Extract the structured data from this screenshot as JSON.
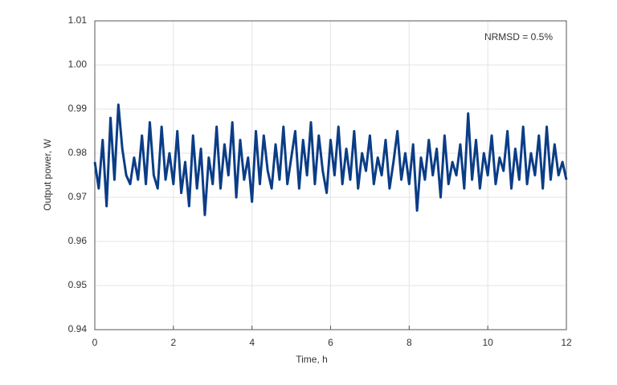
{
  "chart_data": {
    "type": "line",
    "annotation": "NRMSD = 0.5%",
    "xlabel": "Time, h",
    "ylabel": "Output power, W",
    "x": [
      0,
      0.1,
      0.2,
      0.3,
      0.4,
      0.5,
      0.6,
      0.7,
      0.8,
      0.9,
      1,
      1.1,
      1.2,
      1.3,
      1.4,
      1.5,
      1.6,
      1.7,
      1.8,
      1.9,
      2,
      2.1,
      2.2,
      2.3,
      2.4,
      2.5,
      2.6,
      2.7,
      2.8,
      2.9,
      3,
      3.1,
      3.2,
      3.3,
      3.4,
      3.5,
      3.6,
      3.7,
      3.8,
      3.9,
      4,
      4.1,
      4.2,
      4.3,
      4.4,
      4.5,
      4.6,
      4.7,
      4.8,
      4.9,
      5,
      5.1,
      5.2,
      5.3,
      5.4,
      5.5,
      5.6,
      5.7,
      5.8,
      5.9,
      6,
      6.1,
      6.2,
      6.3,
      6.4,
      6.5,
      6.6,
      6.7,
      6.8,
      6.9,
      7,
      7.1,
      7.2,
      7.3,
      7.4,
      7.5,
      7.6,
      7.7,
      7.8,
      7.9,
      8,
      8.1,
      8.2,
      8.3,
      8.4,
      8.5,
      8.6,
      8.7,
      8.8,
      8.9,
      9,
      9.1,
      9.2,
      9.3,
      9.4,
      9.5,
      9.6,
      9.7,
      9.8,
      9.9,
      10,
      10.1,
      10.2,
      10.3,
      10.4,
      10.5,
      10.6,
      10.7,
      10.8,
      10.9,
      11,
      11.1,
      11.2,
      11.3,
      11.4,
      11.5,
      11.6,
      11.7,
      11.8,
      11.9,
      12
    ],
    "series": [
      {
        "name": "Output power",
        "color": "#0b3d86",
        "values": [
          0.978,
          0.972,
          0.983,
          0.968,
          0.988,
          0.974,
          0.991,
          0.981,
          0.975,
          0.973,
          0.979,
          0.974,
          0.984,
          0.973,
          0.987,
          0.975,
          0.972,
          0.986,
          0.974,
          0.98,
          0.973,
          0.985,
          0.971,
          0.978,
          0.968,
          0.984,
          0.972,
          0.981,
          0.966,
          0.979,
          0.973,
          0.986,
          0.972,
          0.982,
          0.975,
          0.987,
          0.97,
          0.983,
          0.974,
          0.979,
          0.969,
          0.985,
          0.973,
          0.984,
          0.976,
          0.972,
          0.982,
          0.974,
          0.986,
          0.973,
          0.979,
          0.985,
          0.972,
          0.983,
          0.975,
          0.987,
          0.973,
          0.984,
          0.976,
          0.971,
          0.983,
          0.975,
          0.986,
          0.973,
          0.981,
          0.974,
          0.985,
          0.972,
          0.98,
          0.976,
          0.984,
          0.973,
          0.979,
          0.975,
          0.983,
          0.972,
          0.978,
          0.985,
          0.974,
          0.98,
          0.973,
          0.982,
          0.967,
          0.979,
          0.974,
          0.983,
          0.975,
          0.981,
          0.97,
          0.984,
          0.973,
          0.978,
          0.975,
          0.982,
          0.972,
          0.989,
          0.974,
          0.983,
          0.972,
          0.98,
          0.975,
          0.984,
          0.973,
          0.979,
          0.976,
          0.985,
          0.972,
          0.981,
          0.974,
          0.986,
          0.973,
          0.98,
          0.975,
          0.984,
          0.972,
          0.986,
          0.974,
          0.982,
          0.975,
          0.978,
          0.974
        ]
      }
    ],
    "xlim": [
      0,
      12
    ],
    "xticks": [
      0,
      2,
      4,
      6,
      8,
      10,
      12
    ],
    "ylim": [
      0.94,
      1.01
    ],
    "yticks": [
      0.94,
      0.95,
      0.96,
      0.97,
      0.98,
      0.99,
      {
        "value": 1,
        "label": "1.00"
      },
      1.01
    ],
    "grid": true
  }
}
